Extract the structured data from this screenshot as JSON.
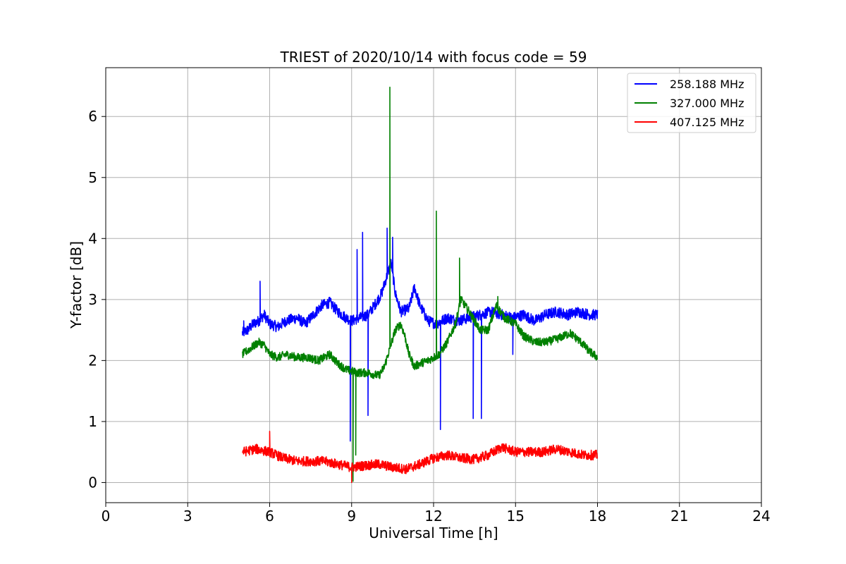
{
  "chart_data": {
    "type": "line",
    "title": "TRIEST of 2020/10/14 with focus code = 59",
    "xlabel": "Universal Time [h]",
    "ylabel": "Y-factor [dB]",
    "xlim": [
      0,
      24
    ],
    "ylim": [
      -0.33,
      6.8
    ],
    "xticks": [
      0,
      3,
      6,
      9,
      12,
      15,
      18,
      21,
      24
    ],
    "yticks": [
      0,
      1,
      2,
      3,
      4,
      5,
      6
    ],
    "grid": true,
    "legend_position": "top-right",
    "series": [
      {
        "name": "258.188 MHz",
        "color": "#0000ff",
        "noise": 0.09,
        "points": [
          [
            5.0,
            2.45
          ],
          [
            5.2,
            2.5
          ],
          [
            5.4,
            2.6
          ],
          [
            5.6,
            2.65
          ],
          [
            5.8,
            2.75
          ],
          [
            6.0,
            2.6
          ],
          [
            6.3,
            2.55
          ],
          [
            6.6,
            2.65
          ],
          [
            7.0,
            2.7
          ],
          [
            7.3,
            2.6
          ],
          [
            7.6,
            2.75
          ],
          [
            7.9,
            2.9
          ],
          [
            8.2,
            2.95
          ],
          [
            8.5,
            2.8
          ],
          [
            8.8,
            2.7
          ],
          [
            9.0,
            2.65
          ],
          [
            9.3,
            2.7
          ],
          [
            9.6,
            2.75
          ],
          [
            9.9,
            2.95
          ],
          [
            10.1,
            3.1
          ],
          [
            10.3,
            3.4
          ],
          [
            10.45,
            3.6
          ],
          [
            10.6,
            3.1
          ],
          [
            10.8,
            2.8
          ],
          [
            11.1,
            2.85
          ],
          [
            11.3,
            3.2
          ],
          [
            11.5,
            2.9
          ],
          [
            11.8,
            2.65
          ],
          [
            12.1,
            2.6
          ],
          [
            12.5,
            2.7
          ],
          [
            12.9,
            2.65
          ],
          [
            13.3,
            2.7
          ],
          [
            13.7,
            2.75
          ],
          [
            14.1,
            2.8
          ],
          [
            14.5,
            2.75
          ],
          [
            14.9,
            2.7
          ],
          [
            15.3,
            2.75
          ],
          [
            15.7,
            2.65
          ],
          [
            16.1,
            2.75
          ],
          [
            16.5,
            2.8
          ],
          [
            16.9,
            2.75
          ],
          [
            17.3,
            2.8
          ],
          [
            17.7,
            2.75
          ],
          [
            18.0,
            2.75
          ]
        ],
        "spikes": [
          [
            5.05,
            2.65
          ],
          [
            5.65,
            3.3
          ],
          [
            8.95,
            0.68
          ],
          [
            9.2,
            3.82
          ],
          [
            9.4,
            4.1
          ],
          [
            9.6,
            1.1
          ],
          [
            10.3,
            4.17
          ],
          [
            10.5,
            4.02
          ],
          [
            12.25,
            0.87
          ],
          [
            13.45,
            1.05
          ],
          [
            13.75,
            1.05
          ],
          [
            14.9,
            2.1
          ]
        ]
      },
      {
        "name": "327.000 MHz",
        "color": "#008000",
        "noise": 0.07,
        "points": [
          [
            5.0,
            2.1
          ],
          [
            5.3,
            2.2
          ],
          [
            5.6,
            2.3
          ],
          [
            5.8,
            2.25
          ],
          [
            6.0,
            2.1
          ],
          [
            6.3,
            2.05
          ],
          [
            6.6,
            2.1
          ],
          [
            7.0,
            2.05
          ],
          [
            7.4,
            2.05
          ],
          [
            7.8,
            2.0
          ],
          [
            8.2,
            2.1
          ],
          [
            8.5,
            1.95
          ],
          [
            8.8,
            1.85
          ],
          [
            9.2,
            1.8
          ],
          [
            9.6,
            1.8
          ],
          [
            10.0,
            1.75
          ],
          [
            10.2,
            1.9
          ],
          [
            10.4,
            2.2
          ],
          [
            10.6,
            2.5
          ],
          [
            10.8,
            2.6
          ],
          [
            10.95,
            2.4
          ],
          [
            11.1,
            2.1
          ],
          [
            11.3,
            1.9
          ],
          [
            11.5,
            1.95
          ],
          [
            11.8,
            2.0
          ],
          [
            12.2,
            2.1
          ],
          [
            12.5,
            2.3
          ],
          [
            12.8,
            2.6
          ],
          [
            13.0,
            3.0
          ],
          [
            13.3,
            2.8
          ],
          [
            13.7,
            2.5
          ],
          [
            14.0,
            2.5
          ],
          [
            14.3,
            2.9
          ],
          [
            14.6,
            2.7
          ],
          [
            15.0,
            2.6
          ],
          [
            15.3,
            2.4
          ],
          [
            15.7,
            2.3
          ],
          [
            16.1,
            2.3
          ],
          [
            16.5,
            2.35
          ],
          [
            17.0,
            2.45
          ],
          [
            17.4,
            2.3
          ],
          [
            17.7,
            2.15
          ],
          [
            18.0,
            2.05
          ]
        ],
        "spikes": [
          [
            9.05,
            0.02
          ],
          [
            9.15,
            0.45
          ],
          [
            10.4,
            6.48
          ],
          [
            12.1,
            4.45
          ],
          [
            12.95,
            3.68
          ],
          [
            14.35,
            3.05
          ]
        ]
      },
      {
        "name": "407.125 MHz",
        "color": "#ff0000",
        "noise": 0.08,
        "points": [
          [
            5.0,
            0.5
          ],
          [
            5.5,
            0.55
          ],
          [
            6.0,
            0.5
          ],
          [
            6.5,
            0.4
          ],
          [
            7.0,
            0.35
          ],
          [
            7.5,
            0.35
          ],
          [
            8.0,
            0.35
          ],
          [
            8.5,
            0.3
          ],
          [
            9.0,
            0.25
          ],
          [
            9.5,
            0.28
          ],
          [
            10.0,
            0.3
          ],
          [
            10.5,
            0.25
          ],
          [
            11.0,
            0.22
          ],
          [
            11.5,
            0.3
          ],
          [
            12.0,
            0.4
          ],
          [
            12.5,
            0.45
          ],
          [
            13.0,
            0.4
          ],
          [
            13.5,
            0.38
          ],
          [
            14.0,
            0.45
          ],
          [
            14.5,
            0.58
          ],
          [
            15.0,
            0.5
          ],
          [
            15.5,
            0.5
          ],
          [
            16.0,
            0.5
          ],
          [
            16.5,
            0.55
          ],
          [
            17.0,
            0.5
          ],
          [
            17.5,
            0.45
          ],
          [
            18.0,
            0.45
          ]
        ],
        "spikes": [
          [
            6.0,
            0.84
          ],
          [
            9.0,
            0.0
          ]
        ]
      }
    ]
  }
}
